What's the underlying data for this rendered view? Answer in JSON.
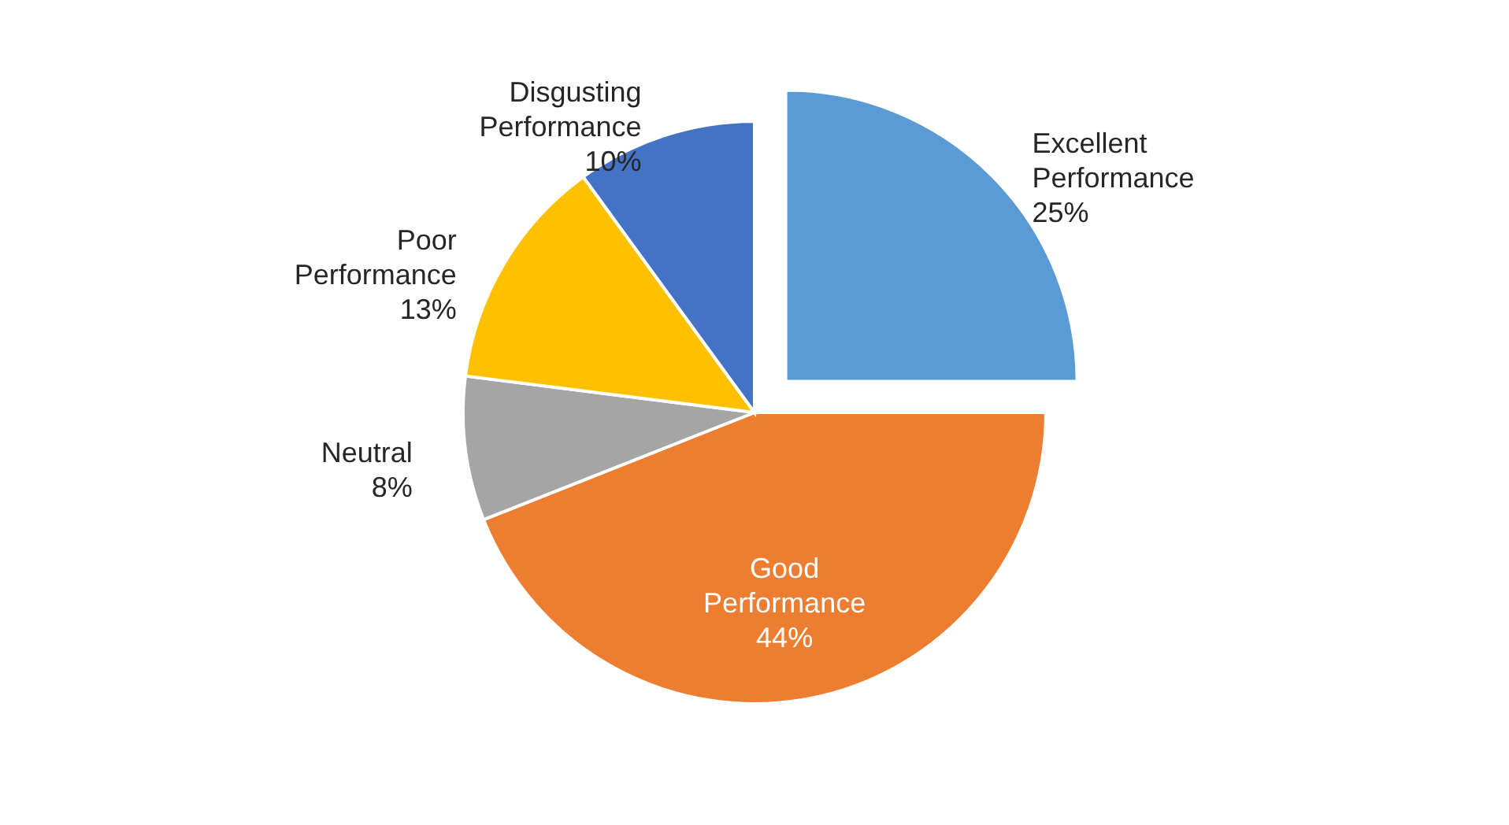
{
  "chart_data": {
    "type": "pie",
    "categories": [
      "Excellent Performance",
      "Good Performance",
      "Neutral",
      "Poor Performance",
      "Disgusting Performance"
    ],
    "values": [
      25,
      44,
      8,
      13,
      10
    ],
    "value_labels": [
      "25%",
      "44%",
      "8%",
      "13%",
      "10%"
    ],
    "colors": [
      "#5b9bd5",
      "#ed7d31",
      "#a5a5a5",
      "#ffc000",
      "#4472c4"
    ]
  }
}
